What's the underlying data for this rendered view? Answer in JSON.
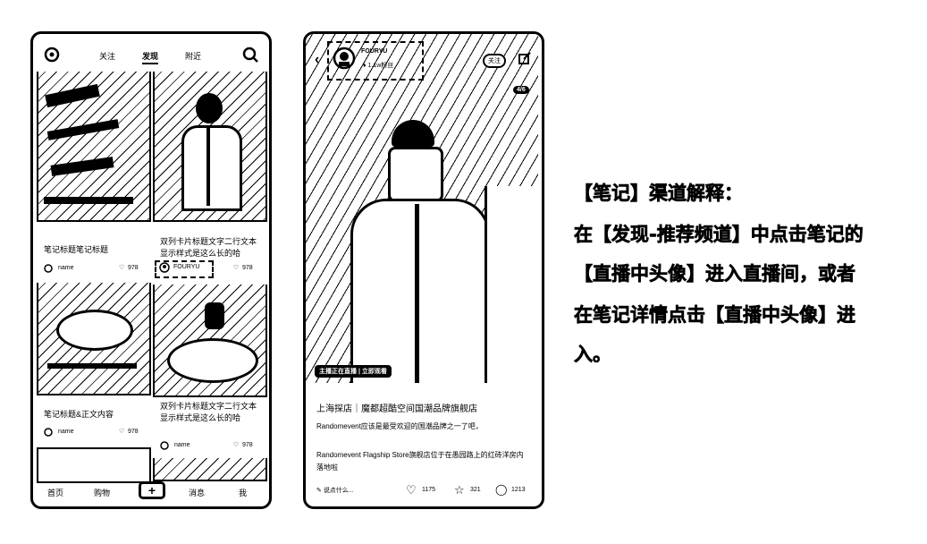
{
  "feed": {
    "tabs": [
      "关注",
      "发现",
      "附近"
    ],
    "active_tab": "发现",
    "cards": [
      {
        "title": "笔记标题笔记标题",
        "author": "name",
        "likes": "978"
      },
      {
        "title": "双列卡片标题文字二行文本显示样式是这么长的哈",
        "author": "FOURYU",
        "likes": "978"
      },
      {
        "title": "笔记标题&正文内容",
        "author": "name",
        "likes": "978"
      },
      {
        "title": "双列卡片标题文字二行文本显示样式是这么长的哈",
        "author": "name",
        "likes": "978"
      }
    ],
    "bottom_nav": [
      "首页",
      "购物",
      "消息",
      "我"
    ]
  },
  "note": {
    "author": "FOURYU",
    "author_sub": "♦ 1.1w粉丝",
    "follow_label": "关注",
    "page_indicator": "4/6",
    "live_badge": "主播正在直播 | 立即观看",
    "title": "上海探店｜魔都超酷空间国潮品牌旗舰店",
    "body_1": "Randomevent应该是最受欢迎的国潮品牌之一了吧，",
    "body_2": "Randomevent Flagship Store旗舰店位于在愚园路上的红砖洋房内落地啦",
    "comment_placeholder": "说点什么...",
    "likes": "1175",
    "stars": "321",
    "comments": "1213"
  },
  "explanation": {
    "line1": "【笔记】渠道解释：",
    "line2": "在【发现-推荐频道】中点击笔记的",
    "line3": "【直播中头像】进入直播间，或者",
    "line4": "在笔记详情点击【直播中头像】进",
    "line5": "入。"
  }
}
